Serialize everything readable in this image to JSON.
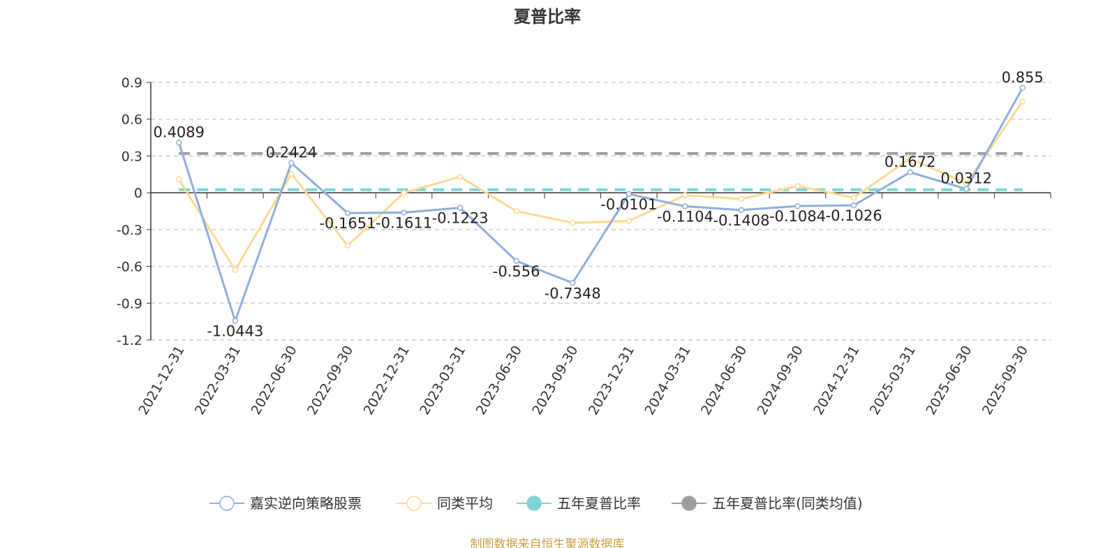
{
  "chart_data": {
    "type": "line",
    "title": "夏普比率",
    "categories": [
      "2021-12-31",
      "2022-03-31",
      "2022-06-30",
      "2022-09-30",
      "2022-12-31",
      "2023-03-31",
      "2023-06-30",
      "2023-09-30",
      "2023-12-31",
      "2024-03-31",
      "2024-06-30",
      "2024-09-30",
      "2024-12-31",
      "2025-03-31",
      "2025-06-30",
      "2025-09-30"
    ],
    "ylim": [
      -1.2,
      0.9
    ],
    "yticks": [
      0.9,
      0.6,
      0.3,
      0,
      -0.3,
      -0.6,
      -0.9,
      -1.2
    ],
    "ytick_labels": [
      "0.9",
      "0.6",
      "0.3",
      "0",
      "-0.3",
      "-0.6",
      "-0.9",
      "-1.2"
    ],
    "grid": true,
    "legend_position": "bottom",
    "series": [
      {
        "name": "嘉实逆向策略股票",
        "color": "#8eaedb",
        "values": [
          0.4089,
          -1.0443,
          0.2424,
          -0.1651,
          -0.1611,
          -0.1223,
          -0.556,
          -0.7348,
          -0.0101,
          -0.1104,
          -0.1408,
          -0.1084,
          -0.1026,
          0.1672,
          0.0312,
          0.855
        ],
        "labels": [
          "0.4089",
          "-1.0443",
          "0.2424",
          "-0.1651",
          "-0.1611",
          "-0.1223",
          "-0.556",
          "-0.7348",
          "-0.0101",
          "-0.1104",
          "-0.1408",
          "-0.1084",
          "-0.1026",
          "0.1672",
          "0.0312",
          "0.855"
        ]
      },
      {
        "name": "同类平均",
        "color": "#fdd993",
        "values": [
          0.11,
          -0.63,
          0.155,
          -0.43,
          0.0,
          0.13,
          -0.15,
          -0.245,
          -0.23,
          -0.02,
          -0.05,
          0.055,
          -0.04,
          0.28,
          0.075,
          0.745
        ]
      },
      {
        "name": "五年夏普比率",
        "color": "#7fd3d3",
        "constant": 0.025
      },
      {
        "name": "五年夏普比率(同类均值)",
        "color": "#9e9e9e",
        "constant": 0.32
      }
    ]
  },
  "footer": "制图数据来自恒生聚源数据库"
}
